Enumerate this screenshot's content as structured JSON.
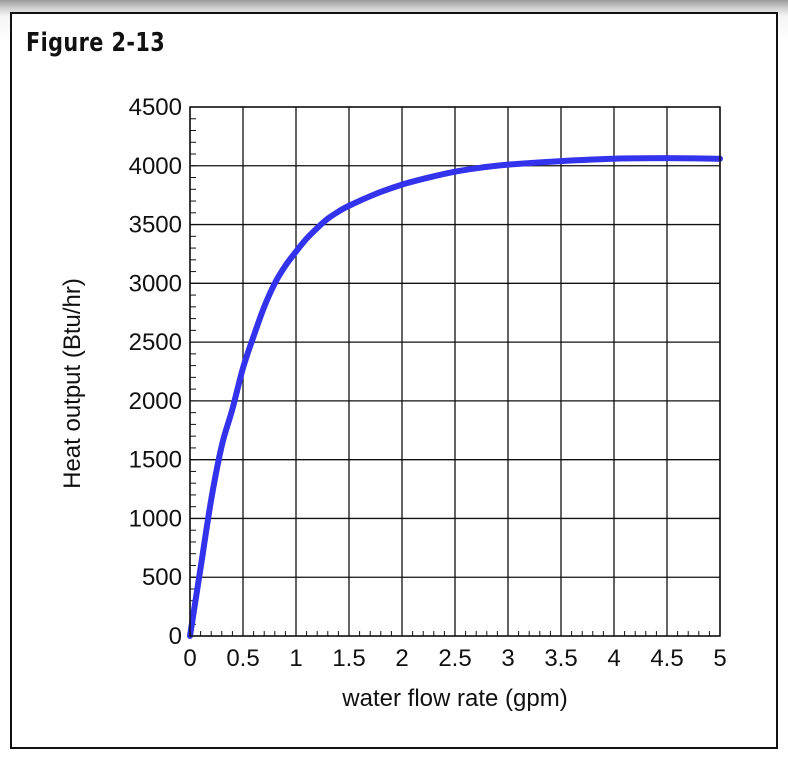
{
  "figure_label": "Figure 2-13",
  "chart_data": {
    "type": "line",
    "title": "Figure 2-13",
    "xlabel": "water flow rate (gpm)",
    "ylabel": "Heat output (Btu/hr)",
    "xlim": [
      0,
      5
    ],
    "ylim": [
      0,
      4500
    ],
    "grid": true,
    "x_ticks": [
      0,
      0.5,
      1,
      1.5,
      2,
      2.5,
      3,
      3.5,
      4,
      4.5,
      5
    ],
    "x_tick_labels": [
      "0",
      "0.5",
      "1",
      "1.5",
      "2",
      "2.5",
      "3",
      "3.5",
      "4",
      "4.5",
      "5"
    ],
    "y_ticks": [
      0,
      500,
      1000,
      1500,
      2000,
      2500,
      3000,
      3500,
      4000,
      4500
    ],
    "y_tick_labels": [
      "0",
      "500",
      "1000",
      "1500",
      "2000",
      "2500",
      "3000",
      "3500",
      "4000",
      "4500"
    ],
    "series": [
      {
        "name": "Heat output",
        "color": "#3333ee",
        "x": [
          0,
          0.1,
          0.2,
          0.3,
          0.4,
          0.5,
          0.6,
          0.7,
          0.8,
          0.9,
          1.0,
          1.1,
          1.2,
          1.3,
          1.4,
          1.5,
          1.75,
          2.0,
          2.25,
          2.5,
          2.75,
          3.0,
          3.5,
          4.0,
          4.5,
          5.0
        ],
        "y": [
          0,
          580,
          1160,
          1620,
          1930,
          2280,
          2550,
          2800,
          3000,
          3150,
          3270,
          3380,
          3470,
          3550,
          3610,
          3660,
          3760,
          3840,
          3900,
          3950,
          3985,
          4010,
          4040,
          4060,
          4065,
          4060
        ]
      }
    ]
  }
}
